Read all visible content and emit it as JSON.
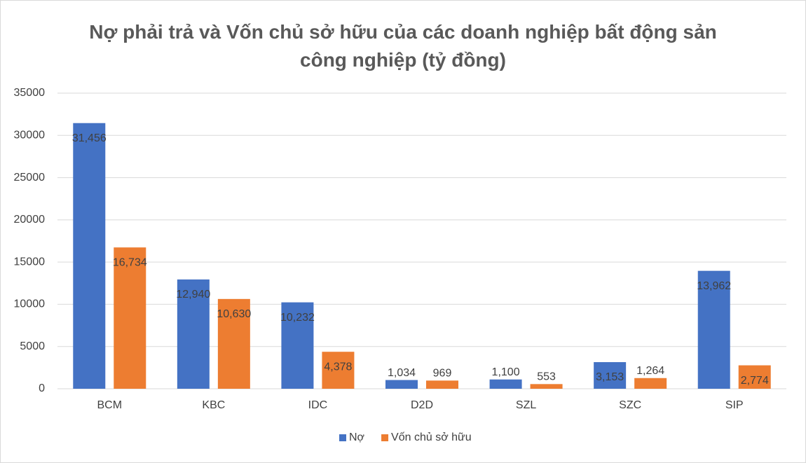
{
  "chart_data": {
    "type": "bar",
    "title": "Nợ phải trả và Vốn chủ sở hữu của các doanh nghiệp bất động sản công nghiệp (tỷ đồng)",
    "categories": [
      "BCM",
      "KBC",
      "IDC",
      "D2D",
      "SZL",
      "SZC",
      "SIP"
    ],
    "series": [
      {
        "name": "Nợ",
        "color": "#4472c4",
        "values": [
          31456,
          12940,
          10232,
          1034,
          1100,
          3153,
          13962
        ],
        "value_labels": [
          "31,456",
          "12,940",
          "10,232",
          "1,034",
          "1,100",
          "3,153",
          "13,962"
        ]
      },
      {
        "name": "Vốn chủ sở hữu",
        "color": "#ed7d31",
        "values": [
          16734,
          10630,
          4378,
          969,
          553,
          1264,
          2774
        ],
        "value_labels": [
          "16,734",
          "10,630",
          "4,378",
          "969",
          "553",
          "1,264",
          "2,774"
        ]
      }
    ],
    "ylim": [
      0,
      35000
    ],
    "yticks": [
      0,
      5000,
      10000,
      15000,
      20000,
      25000,
      30000,
      35000
    ],
    "grid": true,
    "legend": "bottom"
  }
}
